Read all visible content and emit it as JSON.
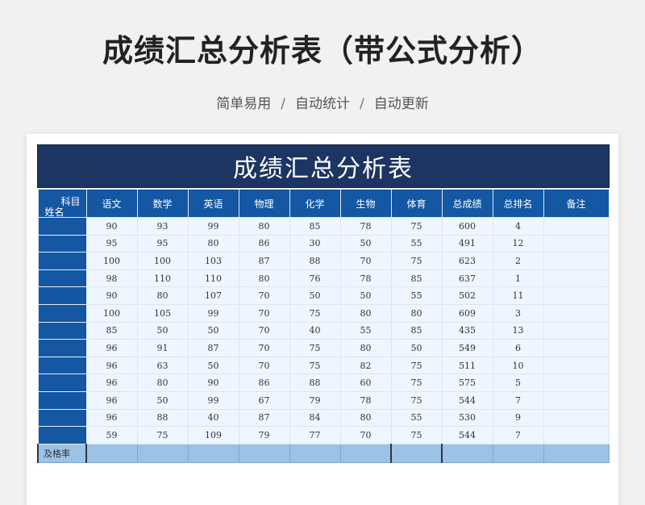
{
  "page": {
    "title": "成绩汇总分析表（带公式分析）",
    "subtitle_items": [
      "简单易用",
      "自动统计",
      "自动更新"
    ],
    "separator": "/"
  },
  "sheet": {
    "banner": "成绩汇总分析表",
    "corner_top": "科目",
    "corner_bottom": "姓名",
    "headers": [
      "语文",
      "数学",
      "英语",
      "物理",
      "化学",
      "生物",
      "体育",
      "总成绩",
      "总排名",
      "备注"
    ],
    "rows": [
      [
        "90",
        "93",
        "99",
        "80",
        "85",
        "78",
        "75",
        "600",
        "4",
        ""
      ],
      [
        "95",
        "95",
        "80",
        "86",
        "30",
        "50",
        "55",
        "491",
        "12",
        ""
      ],
      [
        "100",
        "100",
        "103",
        "87",
        "88",
        "70",
        "75",
        "623",
        "2",
        ""
      ],
      [
        "98",
        "110",
        "110",
        "80",
        "76",
        "78",
        "85",
        "637",
        "1",
        ""
      ],
      [
        "90",
        "80",
        "107",
        "70",
        "50",
        "50",
        "55",
        "502",
        "11",
        ""
      ],
      [
        "100",
        "105",
        "99",
        "70",
        "75",
        "80",
        "80",
        "609",
        "3",
        ""
      ],
      [
        "85",
        "50",
        "50",
        "70",
        "40",
        "55",
        "85",
        "435",
        "13",
        ""
      ],
      [
        "96",
        "91",
        "87",
        "70",
        "75",
        "80",
        "50",
        "549",
        "6",
        ""
      ],
      [
        "96",
        "63",
        "50",
        "70",
        "75",
        "82",
        "75",
        "511",
        "10",
        ""
      ],
      [
        "96",
        "80",
        "90",
        "86",
        "88",
        "60",
        "75",
        "575",
        "5",
        ""
      ],
      [
        "96",
        "50",
        "99",
        "67",
        "79",
        "78",
        "75",
        "544",
        "7",
        ""
      ],
      [
        "96",
        "88",
        "40",
        "87",
        "84",
        "80",
        "55",
        "530",
        "9",
        ""
      ],
      [
        "59",
        "75",
        "109",
        "79",
        "77",
        "70",
        "75",
        "544",
        "7",
        ""
      ]
    ],
    "pass_label": "及格率"
  }
}
